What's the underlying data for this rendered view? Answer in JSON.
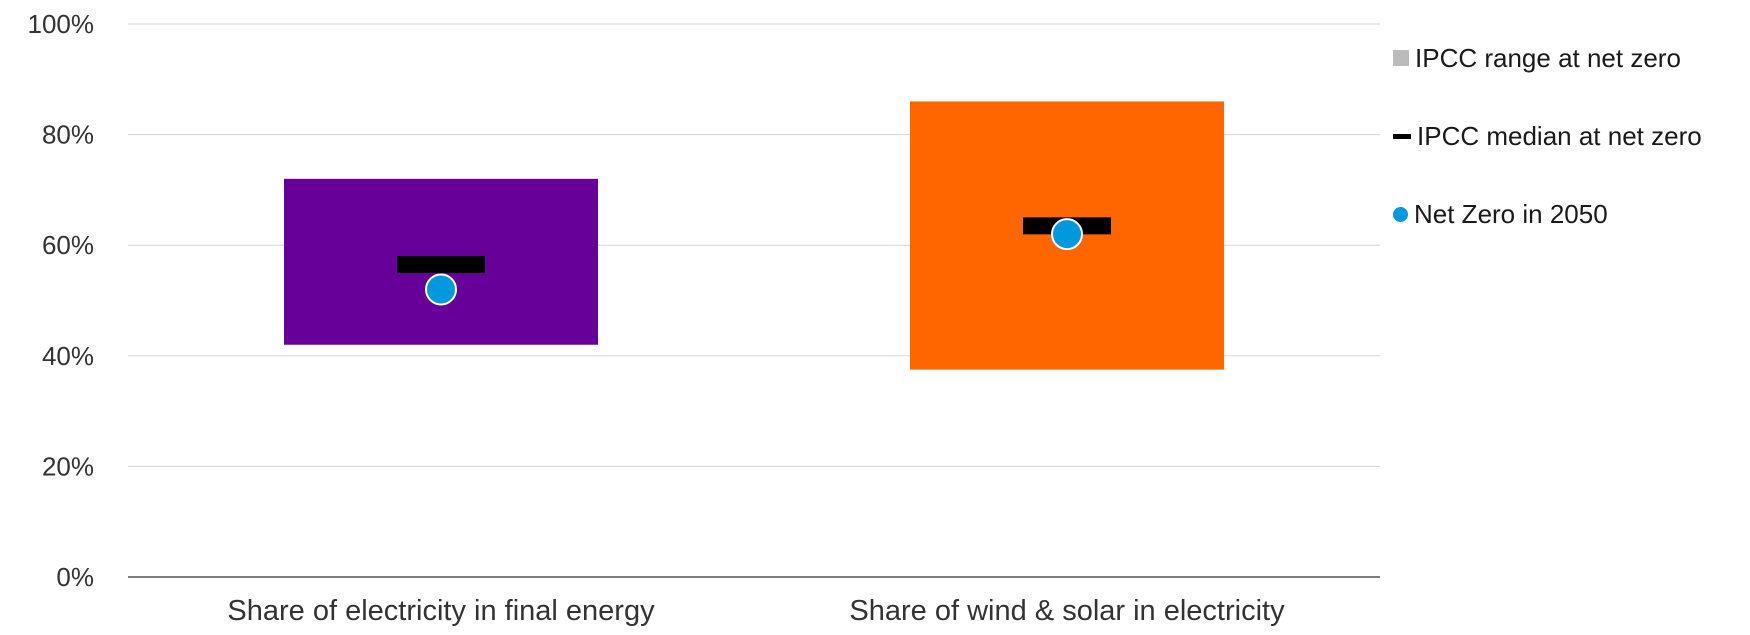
{
  "chart_data": {
    "type": "range",
    "categories": [
      "Share of electricity in final energy",
      "Share of wind & solar in electricity"
    ],
    "series": [
      {
        "name": "IPCC range at net zero",
        "low": [
          42,
          37.5
        ],
        "high": [
          72,
          86
        ],
        "colors": [
          "#660099",
          "#ff6600"
        ]
      },
      {
        "name": "IPCC median at net zero",
        "values": [
          56.5,
          63.5
        ],
        "color": "#000000"
      },
      {
        "name": "Net Zero in 2050",
        "values": [
          52,
          62
        ],
        "color": "#0099dd"
      }
    ],
    "ylim": [
      0,
      100
    ],
    "yticks": [
      0,
      20,
      40,
      60,
      80,
      100
    ],
    "ytick_format": "%",
    "grid": true,
    "legend_position": "right",
    "legend": [
      {
        "label": "IPCC range at net zero",
        "color": "#bbbbbb"
      },
      {
        "label": "IPCC median at net zero",
        "color": "#000000"
      },
      {
        "label": "Net Zero in 2050",
        "color": "#0099dd"
      }
    ]
  }
}
